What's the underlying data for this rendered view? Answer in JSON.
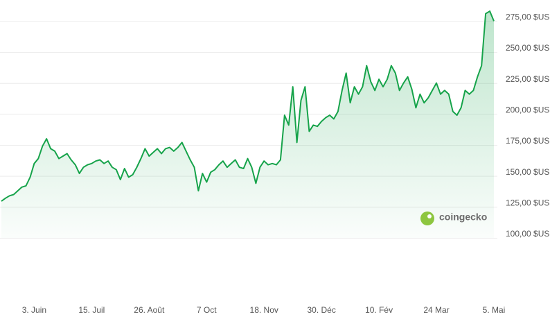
{
  "chart_data": {
    "type": "line",
    "categories": [
      null,
      null,
      null,
      null,
      null,
      null,
      null,
      null,
      "3. Juin",
      null,
      null,
      null,
      null,
      null,
      null,
      null,
      null,
      null,
      null,
      null,
      null,
      null,
      "15. Juil",
      null,
      null,
      null,
      null,
      null,
      null,
      null,
      null,
      null,
      null,
      null,
      null,
      null,
      "26. Août",
      null,
      null,
      null,
      null,
      null,
      null,
      null,
      null,
      null,
      null,
      null,
      null,
      null,
      "7 Oct",
      null,
      null,
      null,
      null,
      null,
      null,
      null,
      null,
      null,
      null,
      null,
      null,
      null,
      "18. Nov",
      null,
      null,
      null,
      null,
      null,
      null,
      null,
      null,
      null,
      null,
      null,
      null,
      null,
      "30. Déc",
      null,
      null,
      null,
      null,
      null,
      null,
      null,
      null,
      null,
      null,
      null,
      null,
      null,
      "10. Fév",
      null,
      null,
      null,
      null,
      null,
      null,
      null,
      null,
      null,
      null,
      null,
      null,
      null,
      "24 Mar",
      null,
      null,
      null,
      null,
      null,
      null,
      null,
      null,
      null,
      null,
      null,
      null,
      null,
      "5. Mai"
    ],
    "values": [
      129.6,
      132,
      134,
      135,
      138,
      141,
      142,
      149,
      160,
      164,
      174,
      180,
      172,
      170,
      164,
      166,
      168,
      163,
      159,
      152,
      157,
      159,
      160,
      162,
      163,
      160,
      162,
      157,
      155,
      147,
      156,
      149,
      151,
      157,
      164,
      172,
      166,
      169,
      172,
      168,
      172,
      173,
      170,
      173,
      177,
      170,
      163,
      157,
      138,
      152,
      145,
      153,
      155,
      159,
      162,
      157,
      160,
      163,
      157,
      156,
      164,
      157,
      144,
      157,
      162,
      159,
      160,
      159,
      163,
      199,
      191,
      222,
      177,
      211,
      222,
      186,
      191,
      190,
      194,
      197,
      199,
      196,
      202,
      219,
      233,
      209,
      222,
      216,
      222,
      239,
      226,
      219,
      228,
      222,
      228,
      239,
      233,
      219,
      225,
      230,
      220,
      205,
      216,
      209,
      213,
      219,
      225,
      216,
      219,
      216,
      202,
      199,
      205,
      219,
      216,
      219,
      230,
      239,
      281,
      283,
      275
    ],
    "color": "#16a34a",
    "ylim": [
      100,
      292
    ],
    "yticks": [
      {
        "value": 100,
        "label": "100,00 $US"
      },
      {
        "value": 125,
        "label": "125,00 $US"
      },
      {
        "value": 150,
        "label": "150,00 $US"
      },
      {
        "value": 175,
        "label": "175,00 $US"
      },
      {
        "value": 200,
        "label": "200,00 $US"
      },
      {
        "value": 225,
        "label": "225,00 $US"
      },
      {
        "value": 250,
        "label": "250,00 $US"
      },
      {
        "value": 275,
        "label": "275,00 $US"
      }
    ],
    "grid": true,
    "watermark": "coingecko"
  }
}
